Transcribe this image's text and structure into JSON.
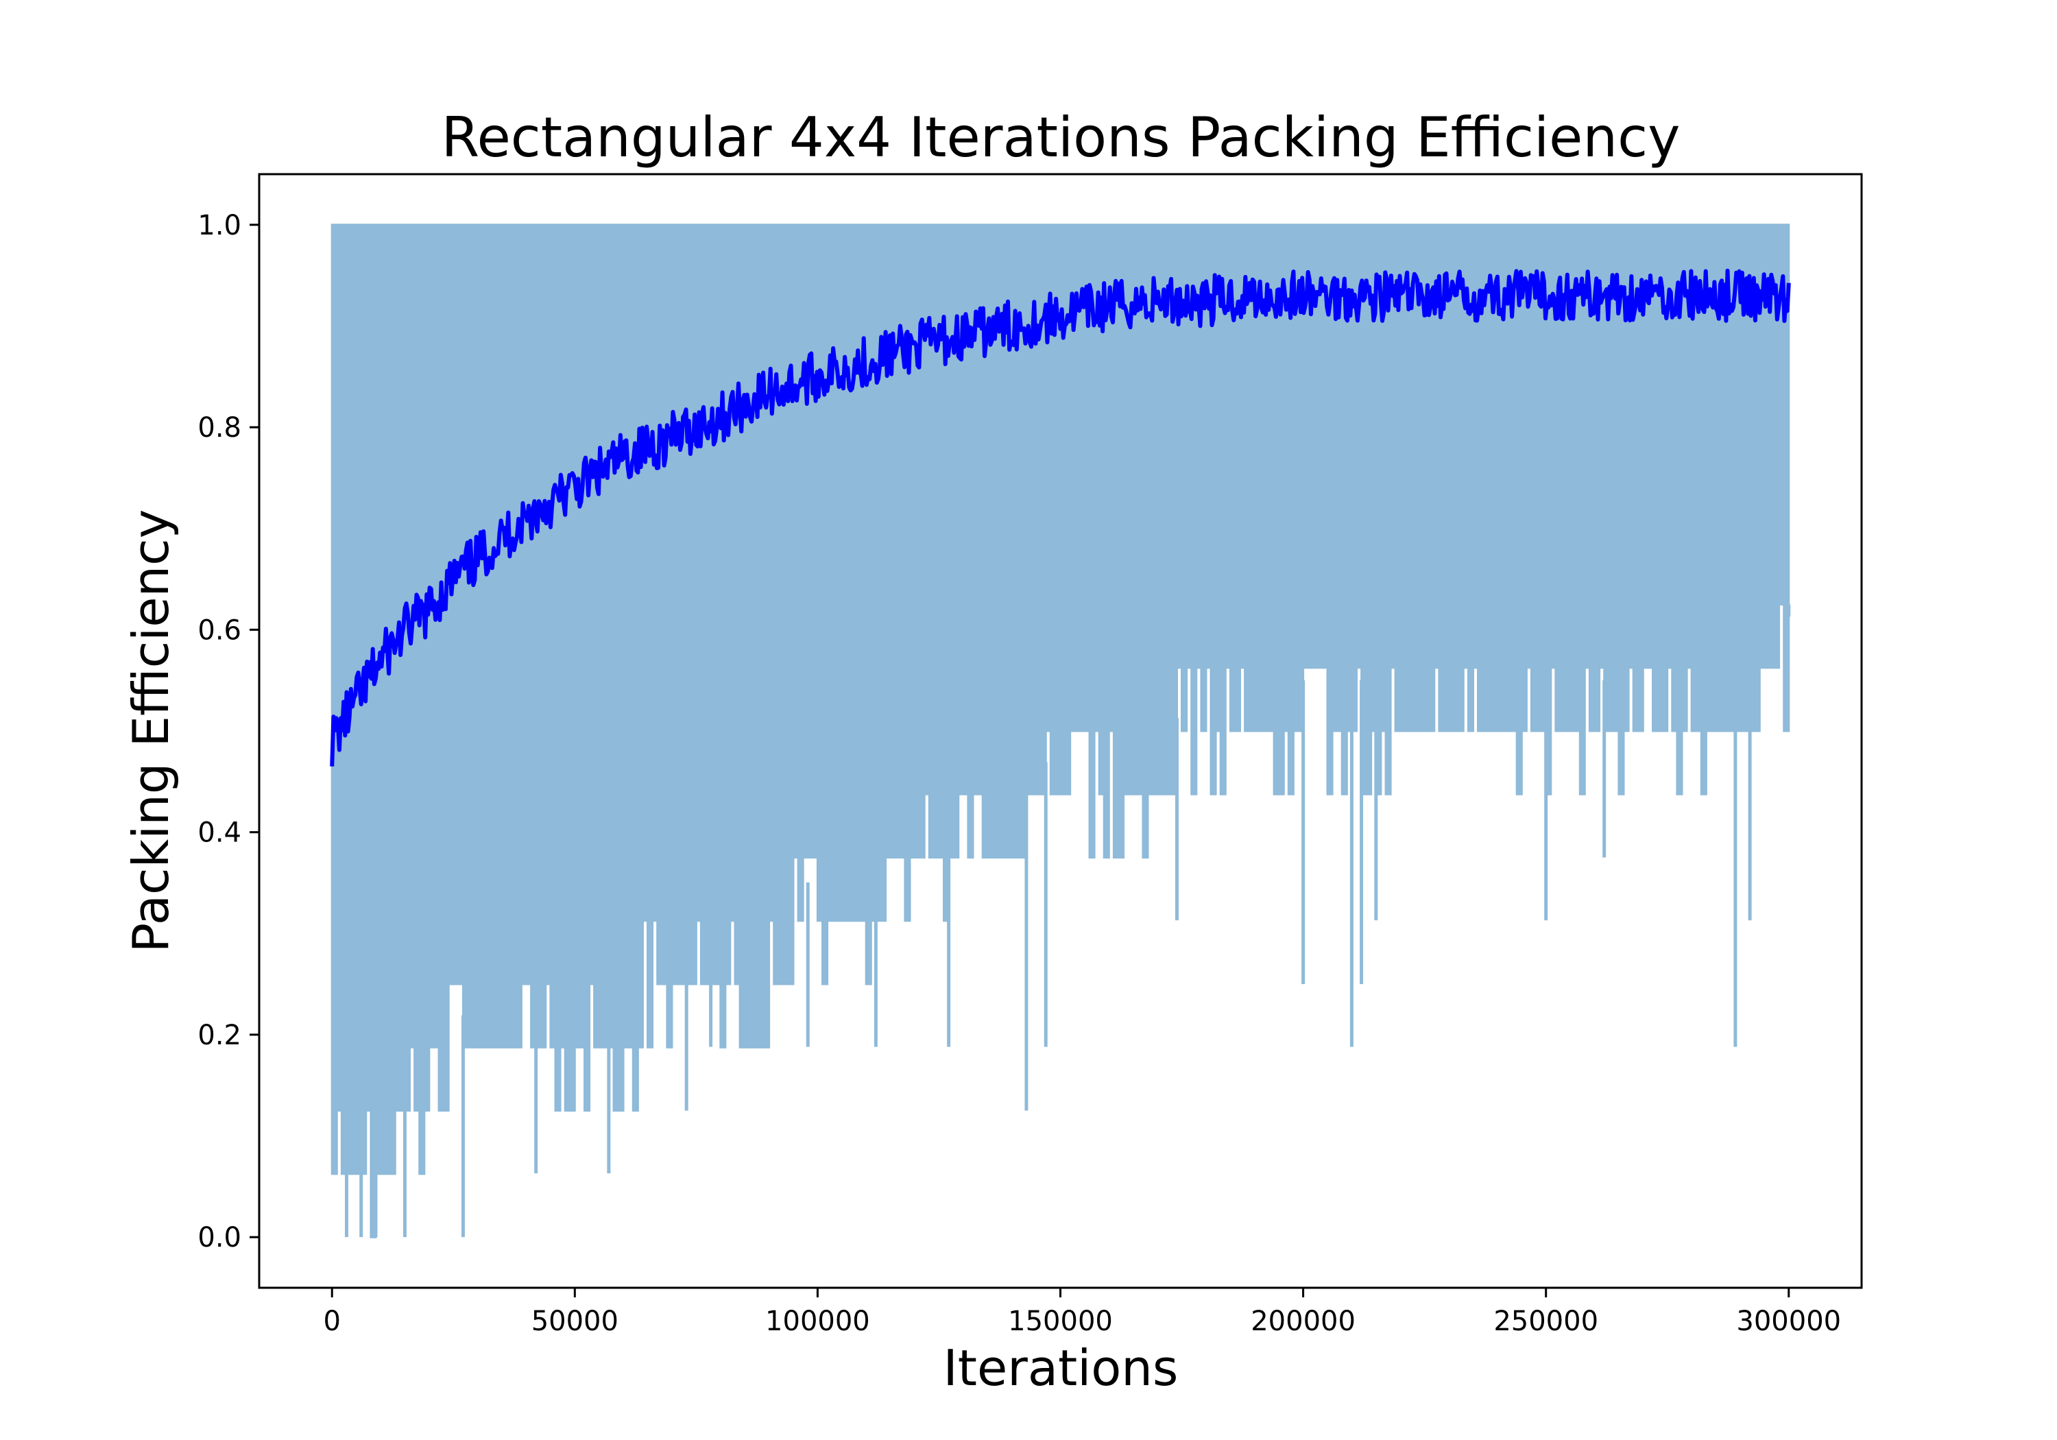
{
  "chart_data": {
    "type": "line",
    "title": "Rectangular 4x4 Iterations Packing Efficiency",
    "xlabel": "Iterations",
    "ylabel": "Packing Efficiency",
    "xlim": [
      -15000,
      315000
    ],
    "ylim": [
      -0.05,
      1.05
    ],
    "xticks": [
      0,
      50000,
      100000,
      150000,
      200000,
      250000,
      300000
    ],
    "xtick_labels": [
      "0",
      "50000",
      "100000",
      "150000",
      "200000",
      "250000",
      "300000"
    ],
    "yticks": [
      0.0,
      0.2,
      0.4,
      0.6,
      0.8,
      1.0
    ],
    "ytick_labels": [
      "0.0",
      "0.2",
      "0.4",
      "0.6",
      "0.8",
      "1.0"
    ],
    "grid": false,
    "legend": "none",
    "colors": {
      "raw": "#8fbad9",
      "smoothed": "#0000ff",
      "axes": "#000000"
    },
    "series": [
      {
        "style": "raw per-iteration values (light band)",
        "x": [
          0,
          10000,
          20000,
          30000,
          40000,
          50000,
          60000,
          70000,
          80000,
          90000,
          100000,
          110000,
          120000,
          130000,
          140000,
          150000,
          160000,
          170000,
          180000,
          190000,
          200000,
          210000,
          220000,
          230000,
          240000,
          250000,
          260000,
          270000,
          280000,
          290000,
          300000
        ],
        "max": [
          1.0,
          1.0,
          1.0,
          1.0,
          1.0,
          1.0,
          1.0,
          1.0,
          1.0,
          1.0,
          1.0,
          1.0,
          1.0,
          1.0,
          1.0,
          1.0,
          1.0,
          1.0,
          1.0,
          1.0,
          1.0,
          1.0,
          1.0,
          1.0,
          1.0,
          1.0,
          1.0,
          1.0,
          1.0,
          1.0,
          1.0
        ],
        "typical_min": [
          0.063,
          0.063,
          0.125,
          0.188,
          0.188,
          0.188,
          0.188,
          0.25,
          0.25,
          0.25,
          0.313,
          0.313,
          0.375,
          0.375,
          0.375,
          0.438,
          0.438,
          0.438,
          0.5,
          0.5,
          0.5,
          0.5,
          0.5,
          0.5,
          0.5,
          0.5,
          0.5,
          0.5,
          0.5,
          0.5,
          0.563
        ],
        "dips": [
          [
            3000,
            0.0
          ],
          [
            6000,
            0.0
          ],
          [
            9000,
            0.0
          ],
          [
            15000,
            0.0
          ],
          [
            27000,
            0.0
          ],
          [
            42000,
            0.063
          ],
          [
            57000,
            0.063
          ],
          [
            73000,
            0.125
          ],
          [
            78000,
            0.188
          ],
          [
            98000,
            0.188
          ],
          [
            112000,
            0.188
          ],
          [
            127000,
            0.188
          ],
          [
            143000,
            0.125
          ],
          [
            147000,
            0.188
          ],
          [
            174000,
            0.313
          ],
          [
            200000,
            0.25
          ],
          [
            210000,
            0.188
          ],
          [
            212000,
            0.25
          ],
          [
            215000,
            0.313
          ],
          [
            250000,
            0.313
          ],
          [
            262000,
            0.375
          ],
          [
            289000,
            0.188
          ],
          [
            292000,
            0.313
          ],
          [
            300000,
            0.625
          ]
        ]
      },
      {
        "style": "moving average (dark line)",
        "x": [
          0,
          5000,
          10000,
          15000,
          20000,
          25000,
          30000,
          40000,
          50000,
          60000,
          70000,
          80000,
          90000,
          100000,
          110000,
          120000,
          130000,
          140000,
          150000,
          160000,
          170000,
          180000,
          190000,
          200000,
          220000,
          240000,
          260000,
          280000,
          300000
        ],
        "values": [
          0.49,
          0.53,
          0.57,
          0.6,
          0.62,
          0.65,
          0.67,
          0.71,
          0.74,
          0.77,
          0.79,
          0.81,
          0.835,
          0.85,
          0.865,
          0.88,
          0.89,
          0.9,
          0.91,
          0.92,
          0.925,
          0.925,
          0.93,
          0.93,
          0.93,
          0.93,
          0.93,
          0.93,
          0.93
        ]
      }
    ]
  }
}
